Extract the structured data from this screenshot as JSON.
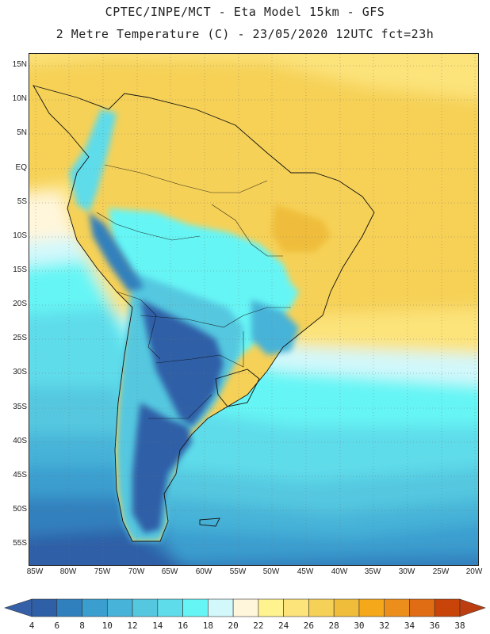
{
  "header": {
    "title": "CPTEC/INPE/MCT -  Eta Model 15km - GFS",
    "subtitle": "2 Metre Temperature (C) - 23/05/2020 12UTC fct=23h"
  },
  "map": {
    "lat_labels": [
      "15N",
      "10N",
      "5N",
      "EQ",
      "5S",
      "10S",
      "15S",
      "20S",
      "25S",
      "30S",
      "35S",
      "40S",
      "45S",
      "50S",
      "55S"
    ],
    "lon_labels": [
      "85W",
      "80W",
      "75W",
      "70W",
      "65W",
      "60W",
      "55W",
      "50W",
      "45W",
      "40W",
      "35W",
      "30W",
      "25W",
      "20W"
    ]
  },
  "legend": {
    "values": [
      "4",
      "6",
      "8",
      "10",
      "12",
      "14",
      "16",
      "18",
      "20",
      "22",
      "24",
      "26",
      "28",
      "30",
      "32",
      "34",
      "36",
      "38"
    ],
    "colors": [
      "#2e5fa7",
      "#3080bd",
      "#3a9ecf",
      "#47b3d8",
      "#55c8e0",
      "#5fdcea",
      "#66f5f5",
      "#d2f8fb",
      "#fff6dc",
      "#fef38e",
      "#fce37a",
      "#f6d157",
      "#efbd3a",
      "#f4a81a",
      "#ec8e1c",
      "#e06c14",
      "#c84408"
    ],
    "under_color": "#3560a8",
    "over_color": "#bb3d10"
  }
}
